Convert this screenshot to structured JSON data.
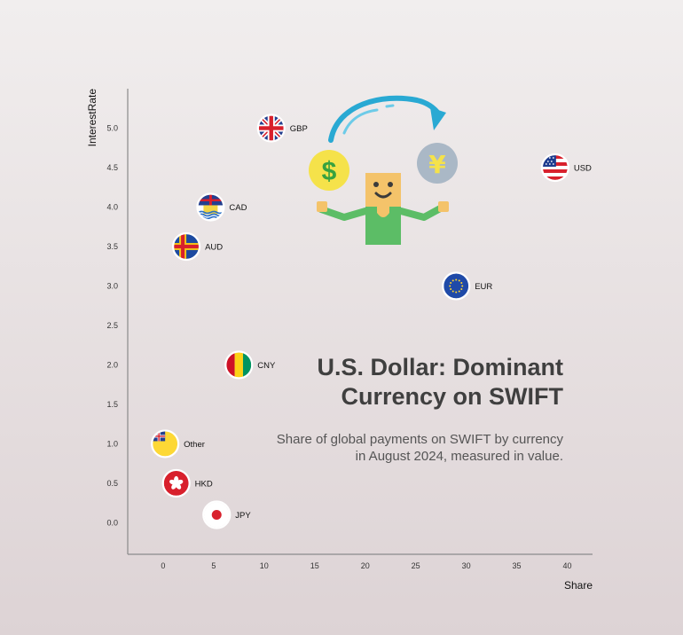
{
  "title": "U.S. Dollar: Dominant Currency on SWIFT",
  "subtitle": "Share of global payments on SWIFT by currency in August 2024, measured in value.",
  "chart_data": {
    "type": "scatter",
    "xlabel": "Share",
    "ylabel": "InterestRate",
    "xlim": [
      -3.5,
      42.5
    ],
    "ylim": [
      -0.4,
      5.5
    ],
    "xticks": [
      0,
      5,
      10,
      15,
      20,
      25,
      30,
      35,
      40
    ],
    "yticks": [
      0.0,
      0.5,
      1.0,
      1.5,
      2.0,
      2.5,
      3.0,
      3.5,
      4.0,
      4.5,
      5.0
    ],
    "grid": false,
    "points": [
      {
        "label": "USD",
        "x": 38.8,
        "y": 4.5,
        "flag": "us-flag-icon"
      },
      {
        "label": "EUR",
        "x": 29.0,
        "y": 3.0,
        "flag": "eu-flag-icon"
      },
      {
        "label": "GBP",
        "x": 10.7,
        "y": 5.0,
        "flag": "uk-flag-icon"
      },
      {
        "label": "CAD",
        "x": 4.7,
        "y": 4.0,
        "flag": "territory-flag-icon"
      },
      {
        "label": "AUD",
        "x": 2.3,
        "y": 3.5,
        "flag": "nordic-cross-flag-icon"
      },
      {
        "label": "CNY",
        "x": 7.5,
        "y": 2.0,
        "flag": "tricolor-flag-icon"
      },
      {
        "label": "Other",
        "x": 0.2,
        "y": 1.0,
        "flag": "ensign-flag-icon"
      },
      {
        "label": "HKD",
        "x": 1.3,
        "y": 0.5,
        "flag": "hk-flag-icon"
      },
      {
        "label": "JPY",
        "x": 5.3,
        "y": 0.1,
        "flag": "japan-flag-icon"
      }
    ]
  },
  "colors": {
    "axis": "#8a8a8a",
    "arrow": "#29a9d3",
    "dollar_coin": "#f5e24a",
    "yen_coin": "#aab8c6",
    "coin_symbol": "#37a23f",
    "figure_shirt": "#5cbd66",
    "figure_skin": "#f4c36a"
  }
}
